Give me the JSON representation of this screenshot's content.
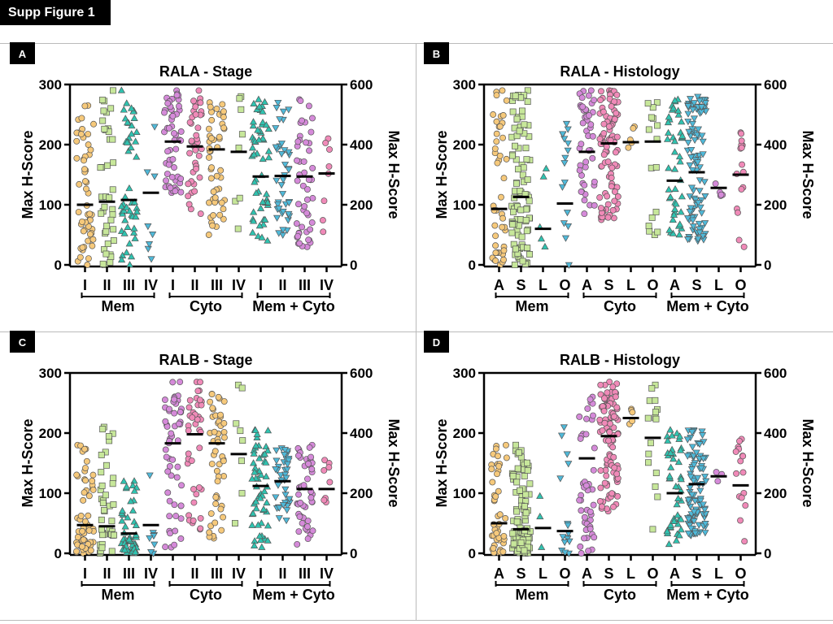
{
  "figure_label": "Supp Figure 1",
  "colors": {
    "orange": "#f6c97b",
    "green": "#c7e79a",
    "teal": "#2fc3b0",
    "blue": "#4fb9d9",
    "purple": "#d58ad9",
    "pink": "#f08ab8"
  },
  "chart_data": [
    {
      "panel": "A",
      "type": "scatter",
      "title": "RALA - Stage",
      "ylabel": "Max H-Score",
      "y2label": "Max H-Score",
      "ylim": [
        0,
        300
      ],
      "yticks": [
        0,
        100,
        200,
        300
      ],
      "y2ticks": [
        0,
        200,
        400,
        600
      ],
      "groups": [
        {
          "name": "Mem",
          "categories": [
            {
              "label": "I",
              "color": "orange",
              "shape": "circle",
              "median": 100,
              "n": 55,
              "min": 0,
              "max": 265
            },
            {
              "label": "II",
              "color": "green",
              "shape": "square",
              "median": 105,
              "n": 40,
              "min": 0,
              "max": 290
            },
            {
              "label": "III",
              "color": "teal",
              "shape": "triangle-up",
              "median": 108,
              "n": 50,
              "min": 0,
              "max": 290
            },
            {
              "label": "IV",
              "color": "blue",
              "shape": "triangle-down",
              "median": 120,
              "n": 8,
              "min": 10,
              "max": 230
            }
          ]
        },
        {
          "name": "Cyto",
          "categories": [
            {
              "label": "I",
              "color": "purple",
              "shape": "circle",
              "median": 205,
              "n": 55,
              "min": 120,
              "max": 290
            },
            {
              "label": "II",
              "color": "pink",
              "shape": "circle",
              "median": 197,
              "n": 40,
              "min": 85,
              "max": 290
            },
            {
              "label": "III",
              "color": "orange",
              "shape": "circle",
              "median": 192,
              "n": 50,
              "min": 50,
              "max": 270
            },
            {
              "label": "IV",
              "color": "green",
              "shape": "square",
              "median": 188,
              "n": 8,
              "min": 60,
              "max": 280
            }
          ]
        },
        {
          "name": "Mem + Cyto",
          "categories": [
            {
              "label": "I",
              "color": "teal",
              "shape": "triangle-up",
              "median": 147,
              "n": 55,
              "min": 40,
              "max": 275
            },
            {
              "label": "II",
              "color": "blue",
              "shape": "triangle-down",
              "median": 148,
              "n": 40,
              "min": 50,
              "max": 270
            },
            {
              "label": "III",
              "color": "purple",
              "shape": "circle",
              "median": 147,
              "n": 50,
              "min": 30,
              "max": 275
            },
            {
              "label": "IV",
              "color": "pink",
              "shape": "circle",
              "median": 152,
              "n": 8,
              "min": 55,
              "max": 210
            }
          ]
        }
      ]
    },
    {
      "panel": "B",
      "type": "scatter",
      "title": "RALA - Histology",
      "ylabel": "Max H-Score",
      "y2label": "Max H-Score",
      "ylim": [
        0,
        300
      ],
      "yticks": [
        0,
        100,
        200,
        300
      ],
      "y2ticks": [
        0,
        200,
        400,
        600
      ],
      "groups": [
        {
          "name": "Mem",
          "categories": [
            {
              "label": "A",
              "color": "orange",
              "shape": "circle",
              "median": 93,
              "n": 45,
              "min": 0,
              "max": 290
            },
            {
              "label": "S",
              "color": "green",
              "shape": "square",
              "median": 113,
              "n": 95,
              "min": 0,
              "max": 290
            },
            {
              "label": "L",
              "color": "teal",
              "shape": "triangle-up",
              "median": 60,
              "n": 5,
              "min": 30,
              "max": 160
            },
            {
              "label": "O",
              "color": "blue",
              "shape": "triangle-down",
              "median": 102,
              "n": 16,
              "min": 0,
              "max": 235
            }
          ]
        },
        {
          "name": "Cyto",
          "categories": [
            {
              "label": "A",
              "color": "purple",
              "shape": "circle",
              "median": 188,
              "n": 45,
              "min": 85,
              "max": 290
            },
            {
              "label": "S",
              "color": "pink",
              "shape": "circle",
              "median": 202,
              "n": 95,
              "min": 75,
              "max": 290
            },
            {
              "label": "L",
              "color": "orange",
              "shape": "circle",
              "median": 204,
              "n": 5,
              "min": 195,
              "max": 230
            },
            {
              "label": "O",
              "color": "green",
              "shape": "square",
              "median": 205,
              "n": 16,
              "min": 50,
              "max": 270
            }
          ]
        },
        {
          "name": "Mem + Cyto",
          "categories": [
            {
              "label": "A",
              "color": "teal",
              "shape": "triangle-up",
              "median": 140,
              "n": 45,
              "min": 50,
              "max": 275
            },
            {
              "label": "S",
              "color": "blue",
              "shape": "triangle-down",
              "median": 154,
              "n": 95,
              "min": 40,
              "max": 280
            },
            {
              "label": "L",
              "color": "purple",
              "shape": "circle",
              "median": 128,
              "n": 5,
              "min": 115,
              "max": 135
            },
            {
              "label": "O",
              "color": "pink",
              "shape": "circle",
              "median": 150,
              "n": 16,
              "min": 30,
              "max": 220
            }
          ]
        }
      ]
    },
    {
      "panel": "C",
      "type": "scatter",
      "title": "RALB - Stage",
      "ylabel": "Max H-Score",
      "y2label": "Max H-Score",
      "ylim": [
        0,
        300
      ],
      "yticks": [
        0,
        100,
        200,
        300
      ],
      "y2ticks": [
        0,
        200,
        400,
        600
      ],
      "groups": [
        {
          "name": "Mem",
          "categories": [
            {
              "label": "I",
              "color": "orange",
              "shape": "circle",
              "median": 47,
              "n": 55,
              "min": 0,
              "max": 180
            },
            {
              "label": "II",
              "color": "green",
              "shape": "square",
              "median": 45,
              "n": 40,
              "min": 0,
              "max": 210
            },
            {
              "label": "III",
              "color": "teal",
              "shape": "triangle-up",
              "median": 33,
              "n": 50,
              "min": 0,
              "max": 120
            },
            {
              "label": "IV",
              "color": "blue",
              "shape": "triangle-down",
              "median": 47,
              "n": 8,
              "min": 0,
              "max": 130
            }
          ]
        },
        {
          "name": "Cyto",
          "categories": [
            {
              "label": "I",
              "color": "purple",
              "shape": "circle",
              "median": 183,
              "n": 55,
              "min": 10,
              "max": 285
            },
            {
              "label": "II",
              "color": "pink",
              "shape": "circle",
              "median": 198,
              "n": 40,
              "min": 40,
              "max": 285
            },
            {
              "label": "III",
              "color": "orange",
              "shape": "circle",
              "median": 183,
              "n": 50,
              "min": 25,
              "max": 265
            },
            {
              "label": "IV",
              "color": "green",
              "shape": "square",
              "median": 165,
              "n": 8,
              "min": 50,
              "max": 280
            }
          ]
        },
        {
          "name": "Mem + Cyto",
          "categories": [
            {
              "label": "I",
              "color": "teal",
              "shape": "triangle-up",
              "median": 112,
              "n": 55,
              "min": 10,
              "max": 205
            },
            {
              "label": "II",
              "color": "blue",
              "shape": "triangle-down",
              "median": 120,
              "n": 40,
              "min": 55,
              "max": 175
            },
            {
              "label": "III",
              "color": "purple",
              "shape": "circle",
              "median": 107,
              "n": 50,
              "min": 15,
              "max": 180
            },
            {
              "label": "IV",
              "color": "pink",
              "shape": "circle",
              "median": 107,
              "n": 8,
              "min": 85,
              "max": 155
            }
          ]
        }
      ]
    },
    {
      "panel": "D",
      "type": "scatter",
      "title": "RALB - Histology",
      "ylabel": "Max H-Score",
      "y2label": "Max H-Score",
      "ylim": [
        0,
        300
      ],
      "yticks": [
        0,
        100,
        200,
        300
      ],
      "y2ticks": [
        0,
        200,
        400,
        600
      ],
      "groups": [
        {
          "name": "Mem",
          "categories": [
            {
              "label": "A",
              "color": "orange",
              "shape": "circle",
              "median": 50,
              "n": 45,
              "min": 0,
              "max": 180
            },
            {
              "label": "S",
              "color": "green",
              "shape": "square",
              "median": 40,
              "n": 95,
              "min": 0,
              "max": 180
            },
            {
              "label": "L",
              "color": "teal",
              "shape": "triangle-up",
              "median": 42,
              "n": 3,
              "min": 10,
              "max": 95
            },
            {
              "label": "O",
              "color": "blue",
              "shape": "triangle-down",
              "median": 37,
              "n": 16,
              "min": 0,
              "max": 210
            }
          ]
        },
        {
          "name": "Cyto",
          "categories": [
            {
              "label": "A",
              "color": "purple",
              "shape": "circle",
              "median": 158,
              "n": 45,
              "min": 0,
              "max": 260
            },
            {
              "label": "S",
              "color": "pink",
              "shape": "circle",
              "median": 195,
              "n": 95,
              "min": 70,
              "max": 285
            },
            {
              "label": "L",
              "color": "orange",
              "shape": "circle",
              "median": 225,
              "n": 5,
              "min": 215,
              "max": 240
            },
            {
              "label": "O",
              "color": "green",
              "shape": "square",
              "median": 192,
              "n": 16,
              "min": 40,
              "max": 280
            }
          ]
        },
        {
          "name": "Mem + Cyto",
          "categories": [
            {
              "label": "A",
              "color": "teal",
              "shape": "triangle-up",
              "median": 100,
              "n": 45,
              "min": 15,
              "max": 205
            },
            {
              "label": "S",
              "color": "blue",
              "shape": "triangle-down",
              "median": 115,
              "n": 95,
              "min": 30,
              "max": 205
            },
            {
              "label": "L",
              "color": "purple",
              "shape": "circle",
              "median": 128,
              "n": 3,
              "min": 120,
              "max": 135
            },
            {
              "label": "O",
              "color": "pink",
              "shape": "circle",
              "median": 113,
              "n": 16,
              "min": 20,
              "max": 190
            }
          ]
        }
      ]
    }
  ]
}
